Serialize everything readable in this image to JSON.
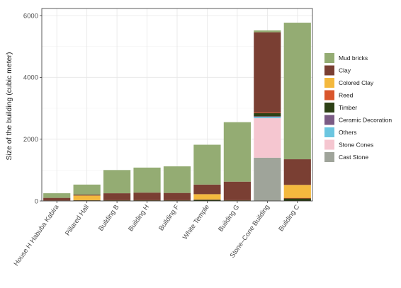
{
  "chart_data": {
    "type": "bar",
    "stacked": true,
    "title": "",
    "xlabel": "",
    "ylabel": "Size of the building (cubic meter)",
    "ylim": [
      0,
      6000
    ],
    "yticks": [
      0,
      2000,
      4000,
      6000
    ],
    "grid": true,
    "legend_position": "right",
    "categories": [
      "House H Habuba Kabira",
      "Pillared Hall",
      "Building B",
      "Building H",
      "Building F",
      "White Temple",
      "Building G",
      "Stone–Cone Building",
      "Building C"
    ],
    "series": [
      {
        "name": "Cast Stone",
        "color": "#9fa49a",
        "values": [
          0,
          0,
          0,
          0,
          0,
          0,
          0,
          1400,
          0
        ]
      },
      {
        "name": "Stone Cones",
        "color": "#f5c6d0",
        "values": [
          0,
          0,
          0,
          0,
          0,
          0,
          0,
          1280,
          0
        ]
      },
      {
        "name": "Others",
        "color": "#6cc6e0",
        "values": [
          0,
          0,
          0,
          0,
          0,
          0,
          0,
          40,
          0
        ]
      },
      {
        "name": "Ceramic Decoration",
        "color": "#7b5b84",
        "values": [
          0,
          0,
          0,
          0,
          0,
          0,
          0,
          20,
          0
        ]
      },
      {
        "name": "Timber",
        "color": "#2d4015",
        "values": [
          10,
          20,
          20,
          20,
          20,
          40,
          20,
          100,
          80
        ]
      },
      {
        "name": "Reed",
        "color": "#d9552b",
        "values": [
          5,
          5,
          5,
          5,
          5,
          10,
          5,
          20,
          20
        ]
      },
      {
        "name": "Colored Clay",
        "color": "#f4b93e",
        "values": [
          0,
          150,
          0,
          0,
          0,
          170,
          0,
          0,
          420
        ]
      },
      {
        "name": "Clay",
        "color": "#7a3f33",
        "values": [
          85,
          30,
          225,
          245,
          235,
          310,
          600,
          2600,
          830
        ]
      },
      {
        "name": "Mud bricks",
        "color": "#94ac73",
        "values": [
          150,
          325,
          750,
          810,
          860,
          1290,
          1925,
          60,
          4420
        ]
      }
    ],
    "legend_order": [
      "Mud bricks",
      "Clay",
      "Colored Clay",
      "Reed",
      "Timber",
      "Ceramic Decoration",
      "Others",
      "Stone Cones",
      "Cast Stone"
    ]
  }
}
